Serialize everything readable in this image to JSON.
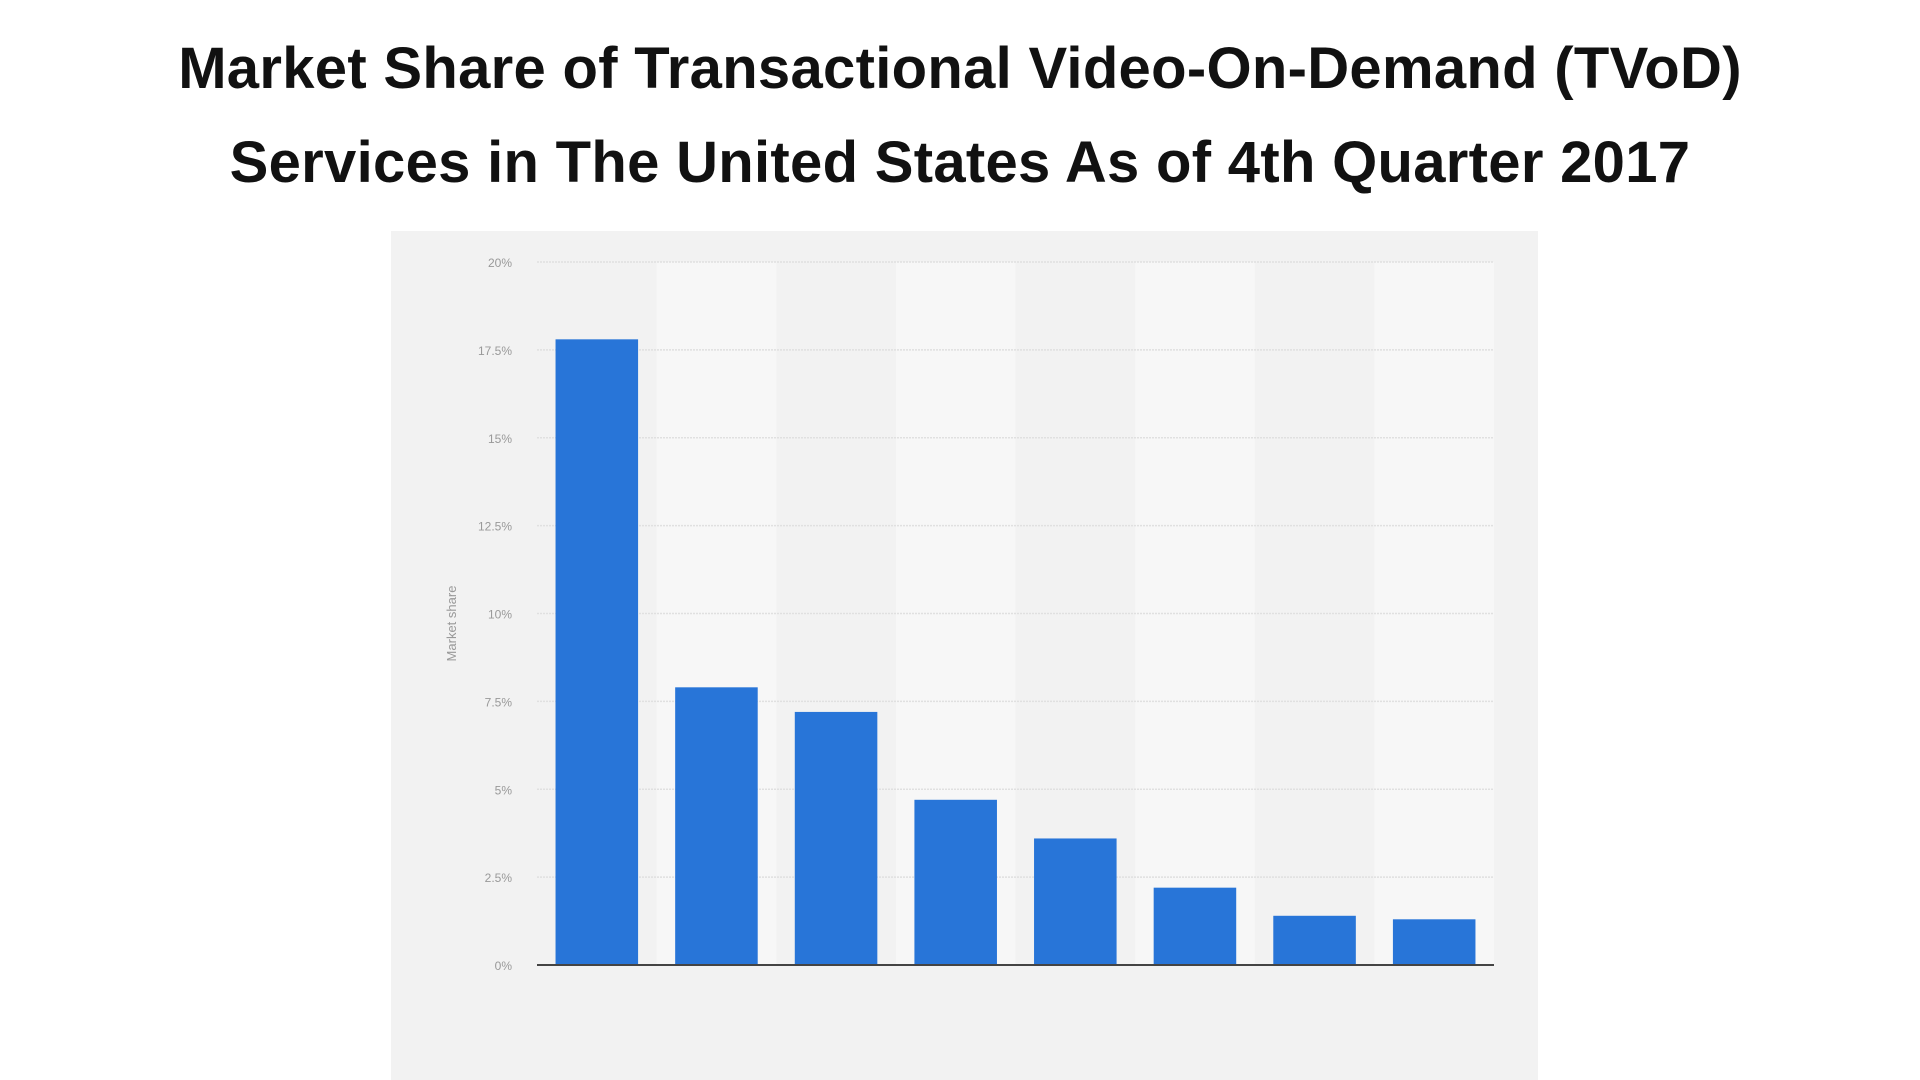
{
  "title_lines": [
    "Market Share of Transactional Video-On-Demand (TVoD)",
    "Services in The United States As of 4th Quarter 2017"
  ],
  "chart_data": {
    "type": "bar",
    "title": "Market Share of Transactional Video-On-Demand (TVoD) Services in The United States As of 4th Quarter 2017",
    "xlabel": "",
    "ylabel": "Market share",
    "categories": [
      "",
      "",
      "",
      "",
      "",
      "",
      "",
      ""
    ],
    "values": [
      17.8,
      7.9,
      7.2,
      4.7,
      3.6,
      2.2,
      1.4,
      1.3
    ],
    "ylim": [
      0,
      20
    ],
    "yticks": [
      0,
      2.5,
      5,
      7.5,
      10,
      12.5,
      15,
      17.5,
      20
    ],
    "ytick_labels": [
      "0%",
      "2.5%",
      "5%",
      "7.5%",
      "10%",
      "12.5%",
      "15%",
      "17.5%",
      "20%"
    ],
    "grid": true,
    "bar_color": "#2875d8",
    "background_color": "#f2f2f2"
  }
}
